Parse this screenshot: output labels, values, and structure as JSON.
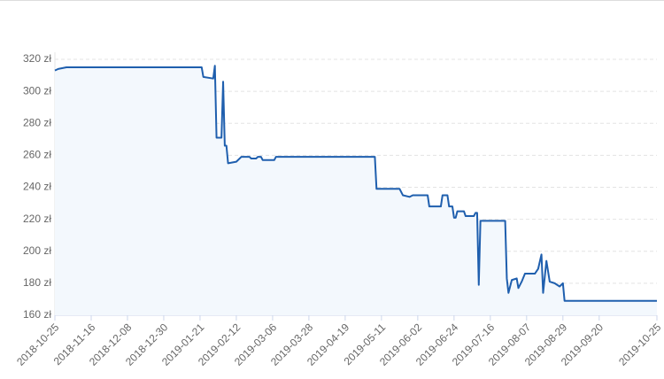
{
  "chart_data": {
    "type": "line",
    "series": [
      {
        "color": "#1f5fae",
        "fill": "#f3f8fd",
        "x": [
          "2018-10-25",
          "2018-10-27",
          "2018-11-01",
          "2019-01-22",
          "2019-01-23",
          "2019-01-29",
          "2019-01-30",
          "2019-01-31",
          "2019-02-03",
          "2019-02-04",
          "2019-02-05",
          "2019-02-06",
          "2019-02-07",
          "2019-02-12",
          "2019-02-15",
          "2019-02-20",
          "2019-02-21",
          "2019-02-24",
          "2019-02-25",
          "2019-02-27",
          "2019-02-28",
          "2019-03-07",
          "2019-03-08",
          "2019-05-07",
          "2019-05-08",
          "2019-05-22",
          "2019-05-24",
          "2019-05-28",
          "2019-05-30",
          "2019-06-08",
          "2019-06-09",
          "2019-06-16",
          "2019-06-17",
          "2019-06-20",
          "2019-06-21",
          "2019-06-23",
          "2019-06-24",
          "2019-06-25",
          "2019-06-26",
          "2019-06-30",
          "2019-07-01",
          "2019-07-06",
          "2019-07-07",
          "2019-07-08",
          "2019-07-09",
          "2019-07-10",
          "2019-07-25",
          "2019-07-26",
          "2019-07-27",
          "2019-07-29",
          "2019-08-01",
          "2019-08-02",
          "2019-08-04",
          "2019-08-06",
          "2019-08-12",
          "2019-08-14",
          "2019-08-16",
          "2019-08-17",
          "2019-08-19",
          "2019-08-21",
          "2019-08-24",
          "2019-08-27",
          "2019-08-29",
          "2019-08-30",
          "2019-10-25"
        ],
        "values": [
          313,
          314,
          315,
          315,
          309,
          308,
          316,
          271,
          271,
          306,
          266,
          266,
          255,
          256,
          259,
          259,
          258,
          258,
          259,
          259,
          257,
          257,
          259,
          259,
          239,
          239,
          235,
          234,
          235,
          235,
          228,
          228,
          235,
          235,
          228,
          228,
          221,
          221,
          225,
          225,
          222,
          222,
          224,
          224,
          179,
          219,
          219,
          183,
          174,
          182,
          183,
          177,
          181,
          186,
          186,
          189,
          198,
          174,
          194,
          181,
          180,
          178,
          180,
          169,
          169
        ]
      }
    ],
    "xlim": [
      "2018-10-25",
      "2019-10-25"
    ],
    "xticks": [
      "2018-10-25",
      "2018-11-16",
      "2018-12-08",
      "2018-12-30",
      "2019-01-21",
      "2019-02-12",
      "2019-03-06",
      "2019-03-28",
      "2019-04-19",
      "2019-05-11",
      "2019-06-02",
      "2019-06-24",
      "2019-07-16",
      "2019-08-07",
      "2019-08-29",
      "2019-09-20",
      "2019-10-25"
    ],
    "ylim": [
      160,
      320
    ],
    "yticks": [
      {
        "value": 160,
        "label": "160 zł"
      },
      {
        "value": 180,
        "label": "180 zł"
      },
      {
        "value": 200,
        "label": "200 zł"
      },
      {
        "value": 220,
        "label": "220 zł"
      },
      {
        "value": 240,
        "label": "240 zł"
      },
      {
        "value": 260,
        "label": "260 zł"
      },
      {
        "value": 280,
        "label": "280 zł"
      },
      {
        "value": 300,
        "label": "300 zł"
      },
      {
        "value": 320,
        "label": "320 zł"
      }
    ],
    "grid": true
  }
}
